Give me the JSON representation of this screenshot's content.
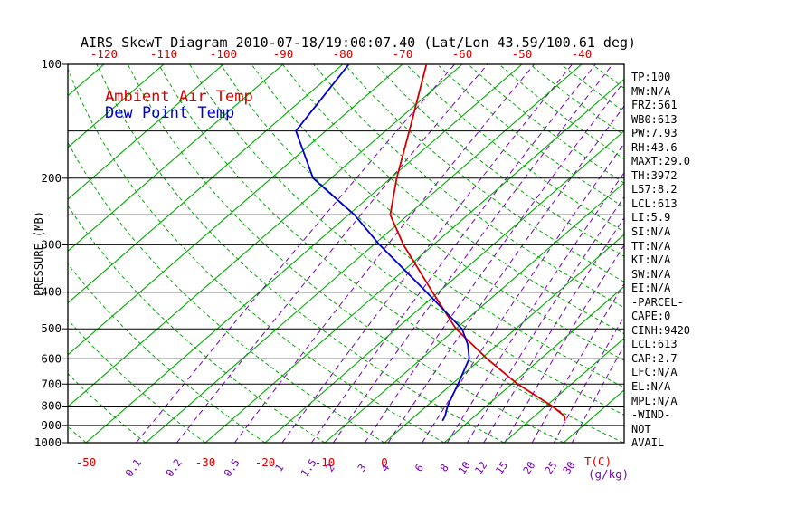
{
  "title": "AIRS SkewT Diagram 2010-07-18/19:00:07.40 (Lat/Lon 43.59/100.61 deg)",
  "labels": {
    "pressure_axis": "PRESSURE (MB)",
    "temp_unit": "T(C)",
    "mixing_unit": "(g/kg)"
  },
  "colors": {
    "temp": "#d40000",
    "dew": "#0000c8",
    "isotherm": "#00aa00",
    "adiabat": "#00aa00",
    "mixing": "#7700bb",
    "axis": "#000000"
  },
  "stats_panel": {
    "lines": [
      "TP:100",
      "MW:N/A",
      "FRZ:561",
      "WB0:613",
      "PW:7.93",
      "RH:43.6",
      "MAXT:29.0",
      "TH:3972",
      "L57:8.2",
      "LCL:613",
      "LI:5.9",
      "SI:N/A",
      "TT:N/A",
      "KI:N/A",
      "SW:N/A",
      "EI:N/A",
      "-PARCEL-",
      "CAPE:0",
      "CINH:9420",
      "LCL:613",
      "CAP:2.7",
      "LFC:N/A",
      "EL:N/A",
      "MPL:N/A",
      "-WIND-",
      "NOT",
      "AVAIL"
    ]
  },
  "chart_data": {
    "type": "line",
    "diagram": "skew-t",
    "grid": "skewed",
    "pressure_axis": {
      "scale": "log",
      "range": [
        100,
        1000
      ],
      "ticks": [
        100,
        200,
        300,
        400,
        500,
        600,
        700,
        800,
        900,
        1000
      ],
      "isobar_lines": [
        150,
        200,
        250,
        300,
        400,
        500,
        600,
        700,
        800,
        900,
        1000
      ]
    },
    "temp_axis": {
      "unit": "C",
      "top_labels": [
        -120,
        -110,
        -100,
        -90,
        -80,
        -70,
        -60,
        -50,
        -40
      ],
      "bottom_labels": [
        -50,
        -30,
        -20,
        -10,
        0
      ]
    },
    "isotherms": {
      "min": -180,
      "max": 40,
      "step": 10
    },
    "dry_adiabats": {
      "min": -60,
      "max": 190,
      "step": 10
    },
    "mixing_ratio_lines": {
      "values": [
        0.1,
        0.2,
        0.5,
        1,
        1.5,
        2,
        3,
        4,
        6,
        8,
        10,
        12,
        15,
        20,
        25,
        30
      ]
    },
    "series": [
      {
        "name": "Ambient Air Temp",
        "color_key": "temp",
        "points_pressure_mb_temp_c": [
          [
            875,
            26
          ],
          [
            850,
            25
          ],
          [
            800,
            21
          ],
          [
            700,
            11
          ],
          [
            600,
            1
          ],
          [
            500,
            -10
          ],
          [
            400,
            -21
          ],
          [
            300,
            -35
          ],
          [
            250,
            -43
          ],
          [
            200,
            -49
          ],
          [
            150,
            -56
          ],
          [
            100,
            -66
          ]
        ]
      },
      {
        "name": "Dew Point Temp",
        "color_key": "dew",
        "points_pressure_mb_temp_c": [
          [
            875,
            5.5
          ],
          [
            850,
            5
          ],
          [
            800,
            3.5
          ],
          [
            700,
            1
          ],
          [
            600,
            -2
          ],
          [
            550,
            -5
          ],
          [
            500,
            -9
          ],
          [
            400,
            -22
          ],
          [
            300,
            -39
          ],
          [
            250,
            -49
          ],
          [
            200,
            -63
          ],
          [
            150,
            -75
          ],
          [
            100,
            -79
          ]
        ]
      }
    ]
  }
}
